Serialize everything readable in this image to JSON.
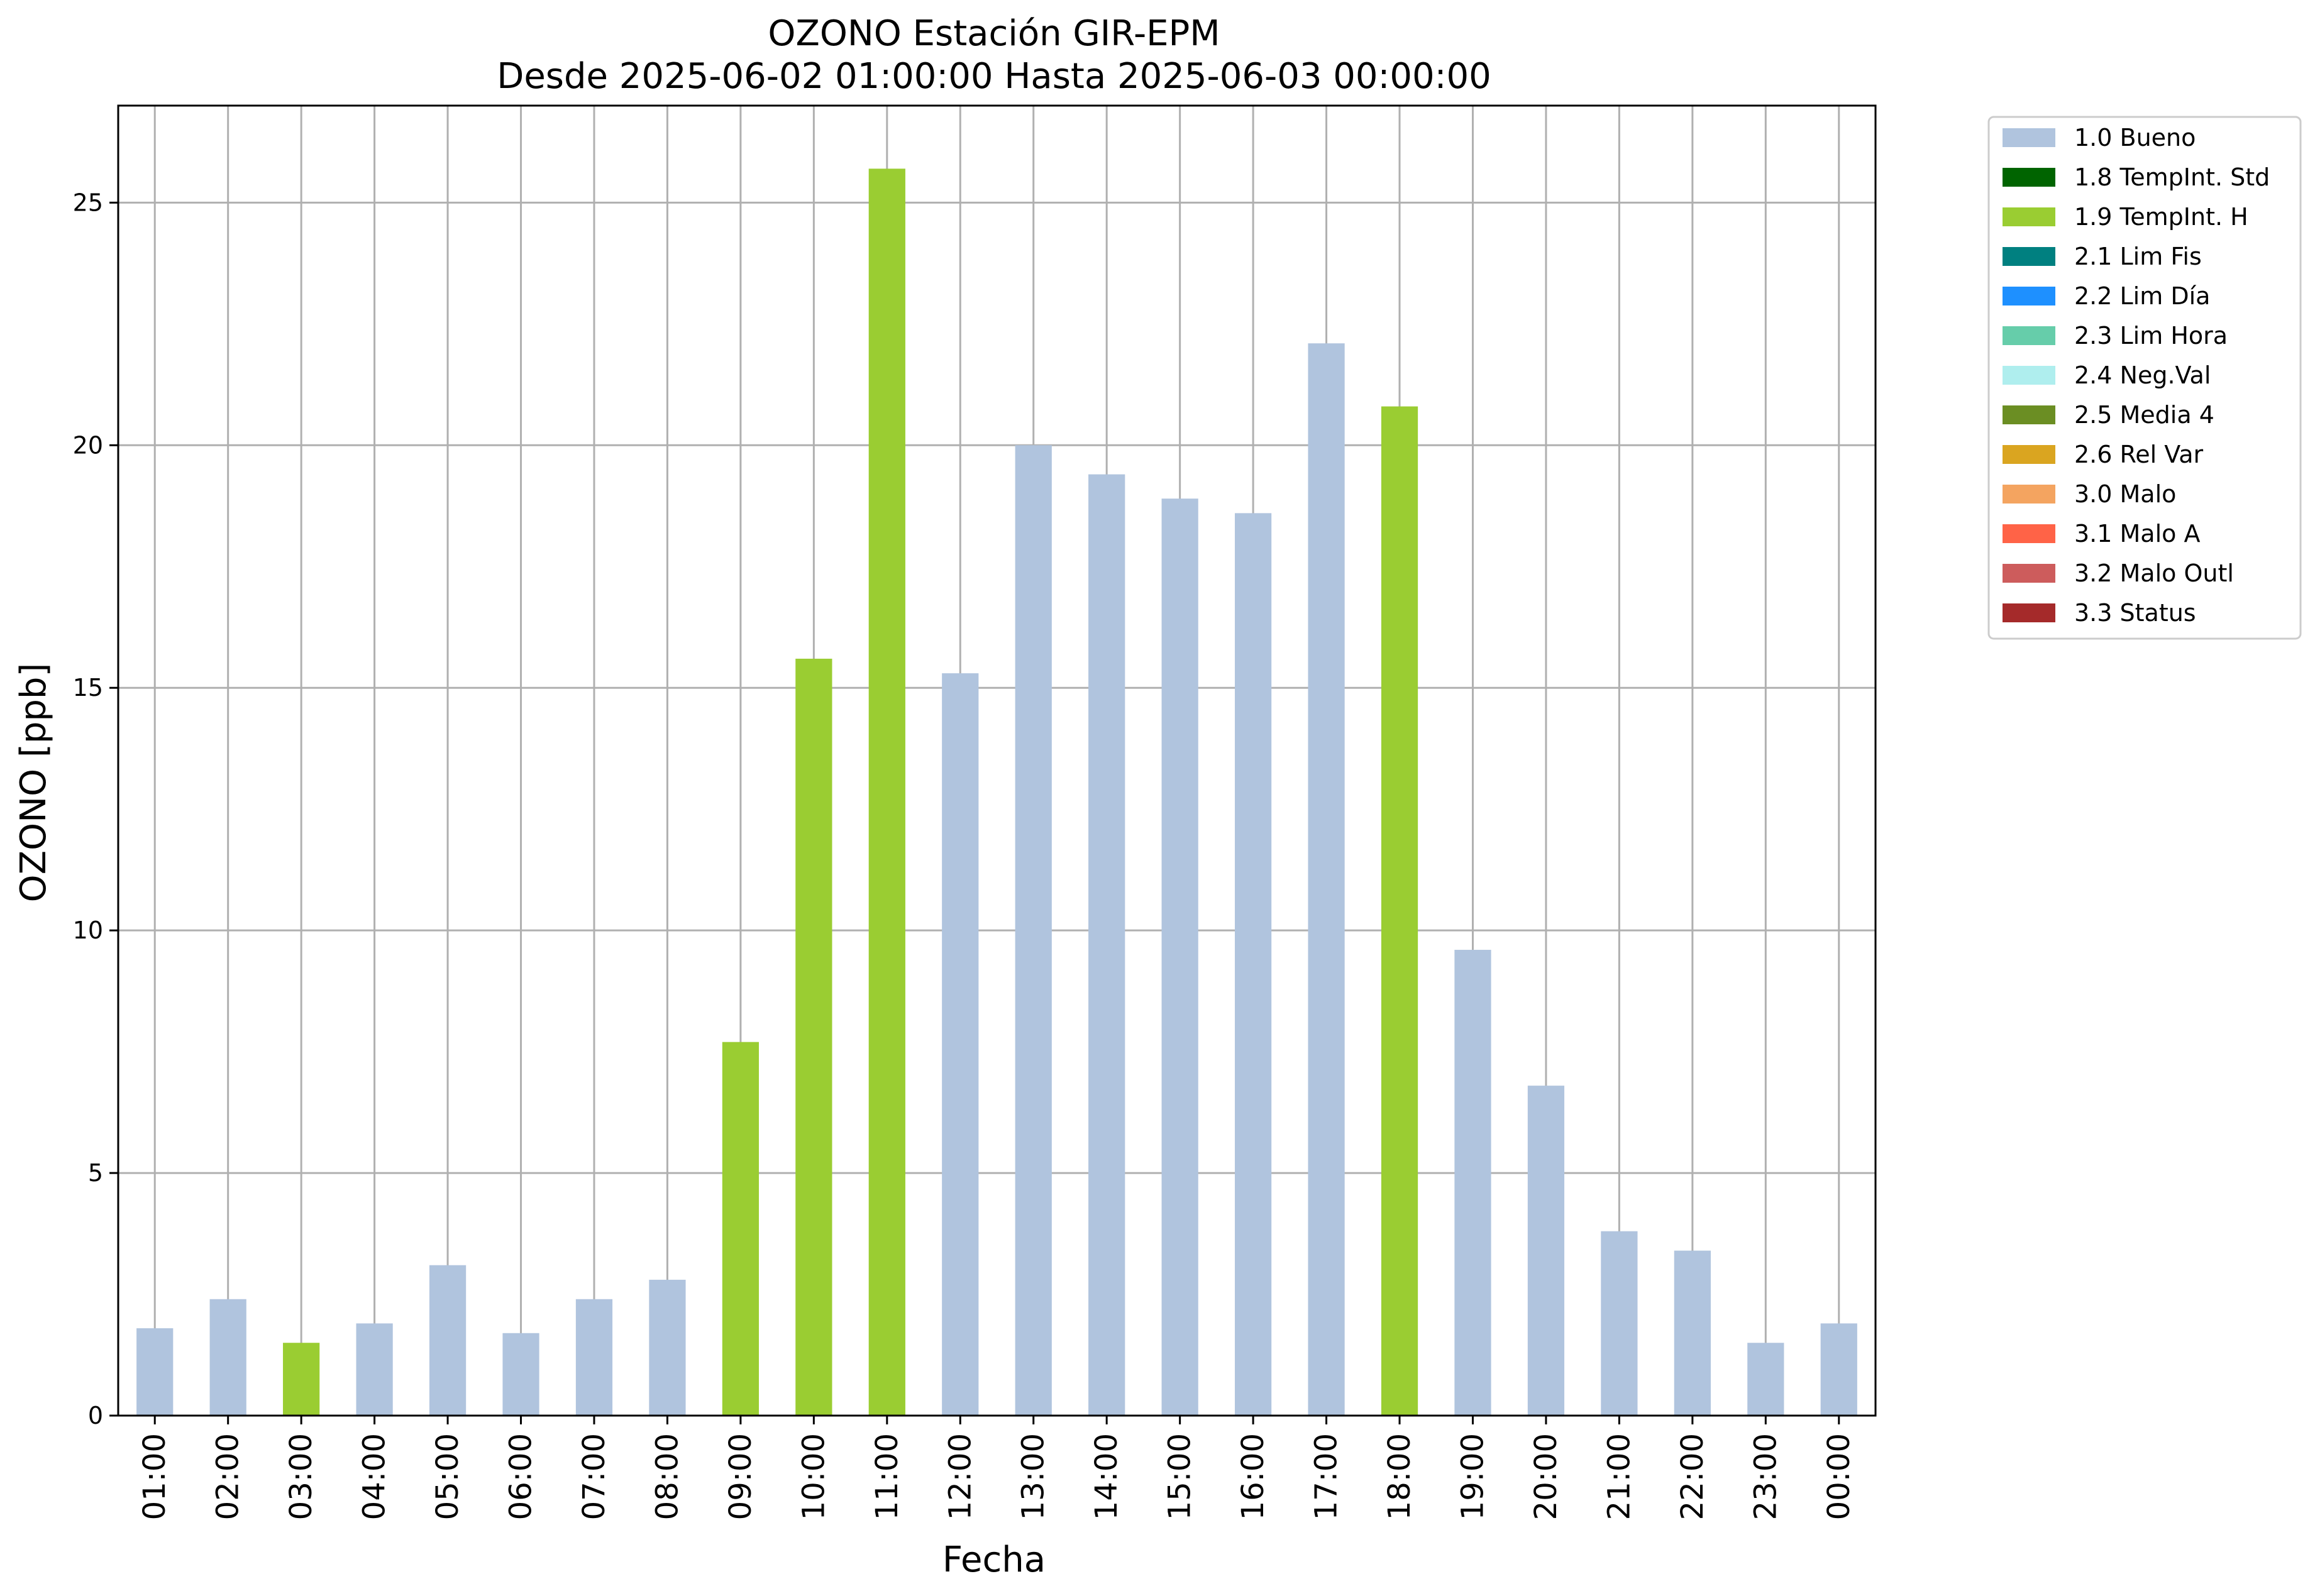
{
  "chart_data": {
    "type": "bar",
    "title_line1": "OZONO Estación GIR-EPM",
    "title_line2": "Desde 2025-06-02 01:00:00 Hasta 2025-06-03 00:00:00",
    "xlabel": "Fecha",
    "ylabel": "OZONO [ppb]",
    "ylim": [
      0,
      27
    ],
    "yticks": [
      0,
      5,
      10,
      15,
      20,
      25
    ],
    "grid": true,
    "legend_position": "outside-top-right",
    "categories": [
      "01:00",
      "02:00",
      "03:00",
      "04:00",
      "05:00",
      "06:00",
      "07:00",
      "08:00",
      "09:00",
      "10:00",
      "11:00",
      "12:00",
      "13:00",
      "14:00",
      "15:00",
      "16:00",
      "17:00",
      "18:00",
      "19:00",
      "20:00",
      "21:00",
      "22:00",
      "23:00",
      "00:00"
    ],
    "values": [
      1.8,
      2.4,
      1.5,
      1.9,
      3.1,
      1.7,
      2.4,
      2.8,
      7.7,
      15.6,
      25.7,
      15.3,
      20.0,
      19.4,
      18.9,
      18.6,
      22.1,
      20.8,
      9.6,
      6.8,
      3.8,
      3.4,
      1.5,
      1.9
    ],
    "flags": [
      "1.0 Bueno",
      "1.0 Bueno",
      "1.9 TempInt. H",
      "1.0 Bueno",
      "1.0 Bueno",
      "1.0 Bueno",
      "1.0 Bueno",
      "1.0 Bueno",
      "1.9 TempInt. H",
      "1.9 TempInt. H",
      "1.9 TempInt. H",
      "1.0 Bueno",
      "1.0 Bueno",
      "1.0 Bueno",
      "1.0 Bueno",
      "1.0 Bueno",
      "1.0 Bueno",
      "1.9 TempInt. H",
      "1.0 Bueno",
      "1.0 Bueno",
      "1.0 Bueno",
      "1.0 Bueno",
      "1.0 Bueno",
      "1.0 Bueno"
    ],
    "legend": [
      {
        "name": "1.0 Bueno",
        "color": "#b0c4de"
      },
      {
        "name": "1.8 TempInt. Std",
        "color": "#006400"
      },
      {
        "name": "1.9 TempInt. H",
        "color": "#9acd32"
      },
      {
        "name": "2.1 Lim Fis",
        "color": "#008080"
      },
      {
        "name": "2.2 Lim Día",
        "color": "#1e90ff"
      },
      {
        "name": "2.3 Lim Hora",
        "color": "#66cdaa"
      },
      {
        "name": "2.4 Neg.Val",
        "color": "#afeeee"
      },
      {
        "name": "2.5 Media 4",
        "color": "#6b8e23"
      },
      {
        "name": "2.6 Rel Var",
        "color": "#daa520"
      },
      {
        "name": "3.0 Malo",
        "color": "#f4a460"
      },
      {
        "name": "3.1 Malo A",
        "color": "#ff6347"
      },
      {
        "name": "3.2 Malo Outl",
        "color": "#cd5c5c"
      },
      {
        "name": "3.3 Status",
        "color": "#a52a2a"
      }
    ]
  }
}
